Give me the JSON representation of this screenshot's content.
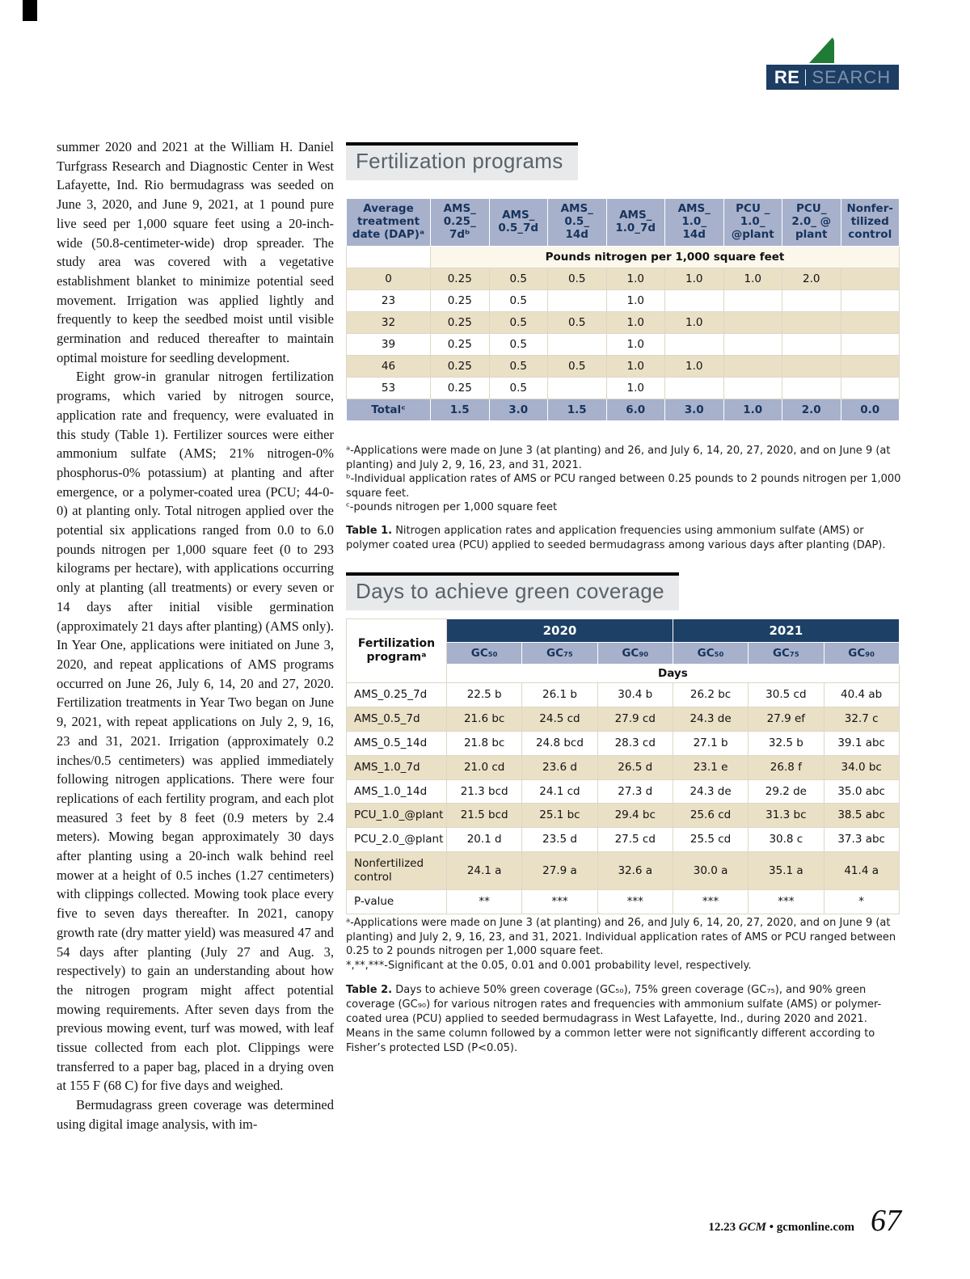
{
  "banner": {
    "re": "RE",
    "search": "SEARCH"
  },
  "page": {
    "footer": {
      "issue": "12.23 ",
      "magazine": "GCM",
      "site": " • gcmonline.com",
      "page_number": "67"
    }
  },
  "article": {
    "paragraphs": [
      "summer 2020 and 2021 at the William H. Daniel Turfgrass Research and Diagnostic Center in West Lafayette, Ind. Rio bermudagrass was seeded on June 3, 2020, and June 9, 2021, at 1 pound pure live seed per 1,000 square feet using a 20-inch-wide (50.8-centimeter-wide) drop spreader. The study area was covered with a vegetative establishment blanket to minimize potential seed movement. Irrigation was applied lightly and frequently to keep the seedbed moist until visible germination and reduced thereafter to maintain optimal moisture for seedling development.",
      "Eight grow-in granular nitrogen fertilization programs, which varied by nitrogen source, application rate and frequency, were evaluated in this study (Table 1). Fertilizer sources were either ammonium sulfate (AMS; 21% nitrogen-0% phosphorus-0% potassium) at planting and after emergence, or a polymer-coated urea (PCU; 44-0-0) at planting only. Total nitrogen applied over the potential six applications ranged from 0.0 to 6.0 pounds nitrogen per 1,000 square feet (0 to 293 kilograms per hectare), with applications occurring only at planting (all treatments) or every seven or 14 days after initial visible germination (approximately 21 days after planting) (AMS only). In Year One, applications were initiated on June 3, 2020, and repeat applications of AMS programs occurred on June 26, July 6, 14, 20 and 27, 2020. Fertilization treatments in Year Two began on June 9, 2021, with repeat applications on July 2, 9, 16, 23 and 31, 2021. Irrigation (approximately 0.2 inches/0.5 centimeters) was applied immediately following nitrogen applications. There were four replications of each fertility program, and each plot measured 3 feet by 8 feet (0.9 meters by 2.4 meters). Mowing began approximately 30 days after planting using a 20-inch walk behind reel mower at a height of 0.5 inches (1.27 centimeters) with clippings collected. Mowing took place every five to seven days thereafter. In 2021, canopy growth rate (dry matter yield) was measured 47 and 54 days after planting (July 27 and Aug. 3, respectively) to gain an understanding about how the nitrogen program might affect potential mowing requirements. After seven days from the previous mowing event, turf was mowed, with leaf tissue collected from each plot. Clippings were transferred to a paper bag, placed in a drying oven at 155 F (68 C) for five days and weighed.",
      "Bermudagrass green coverage was determined using digital image analysis, with im-"
    ]
  },
  "table1": {
    "section_title": "Fertilization programs",
    "col_headers": [
      "Average\ntreatment\ndate (DAP)ᵃ",
      "AMS_\n0.25_\n7dᵇ",
      "AMS_\n0.5_7d",
      "AMS_\n0.5_\n14d",
      "AMS_\n1.0_7d",
      "AMS_\n1.0_\n14d",
      "PCU _\n1.0_\n@plant",
      "PCU_\n2.0_ @\nplant",
      "Nonfer-\ntilized\ncontrol"
    ],
    "subheader": "Pounds nitrogen per 1,000 square feet",
    "rows": [
      [
        "0",
        "0.25",
        "0.5",
        "0.5",
        "1.0",
        "1.0",
        "1.0",
        "2.0",
        ""
      ],
      [
        "23",
        "0.25",
        "0.5",
        "",
        "1.0",
        "",
        "",
        "",
        ""
      ],
      [
        "32",
        "0.25",
        "0.5",
        "0.5",
        "1.0",
        "1.0",
        "",
        "",
        ""
      ],
      [
        "39",
        "0.25",
        "0.5",
        "",
        "1.0",
        "",
        "",
        "",
        ""
      ],
      [
        "46",
        "0.25",
        "0.5",
        "0.5",
        "1.0",
        "1.0",
        "",
        "",
        ""
      ],
      [
        "53",
        "0.25",
        "0.5",
        "",
        "1.0",
        "",
        "",
        "",
        ""
      ]
    ],
    "total_row": [
      "Totalᶜ",
      "1.5",
      "3.0",
      "1.5",
      "6.0",
      "3.0",
      "1.0",
      "2.0",
      "0.0"
    ],
    "footnotes": [
      "ᵃ-Applications were made on June 3 (at planting) and 26, and July 6, 14, 20, 27, 2020, and on June 9 (at planting) and July 2, 9, 16, 23, and 31, 2021.",
      "ᵇ-Individual application rates of AMS or PCU ranged between 0.25 pounds to 2 pounds nitrogen per 1,000 square feet.",
      "ᶜ-pounds nitrogen per 1,000 square feet"
    ],
    "caption_label": "Table 1.",
    "caption_text": " Nitrogen application rates and application frequencies using ammonium sulfate (AMS) or polymer coated urea (PCU) applied to seeded bermudagrass among various days after planting (DAP)."
  },
  "table2": {
    "section_title": "Days to achieve green coverage",
    "program_header": "Fertilization\nprogramᵃ",
    "years": [
      "2020",
      "2021"
    ],
    "gc_headers": [
      "GC₅₀",
      "GC₇₅",
      "GC₉₀",
      "GC₅₀",
      "GC₇₅",
      "GC₉₀"
    ],
    "days_label": "Days",
    "rows": [
      [
        "AMS_0.25_7d",
        "22.5 b",
        "26.1 b",
        "30.4 b",
        "26.2 bc",
        "30.5 cd",
        "40.4 ab"
      ],
      [
        "AMS_0.5_7d",
        "21.6 bc",
        "24.5 cd",
        "27.9 cd",
        "24.3 de",
        "27.9 ef",
        "32.7 c"
      ],
      [
        "AMS_0.5_14d",
        "21.8 bc",
        "24.8 bcd",
        "28.3 cd",
        "27.1 b",
        "32.5 b",
        "39.1 abc"
      ],
      [
        "AMS_1.0_7d",
        "21.0 cd",
        "23.6 d",
        "26.5 d",
        "23.1 e",
        "26.8 f",
        "34.0 bc"
      ],
      [
        "AMS_1.0_14d",
        "21.3 bcd",
        "24.1 cd",
        "27.3 d",
        "24.3 de",
        "29.2 de",
        "35.0 abc"
      ],
      [
        "PCU_1.0_@plant",
        "21.5 bcd",
        "25.1 bc",
        "29.4 bc",
        "25.6 cd",
        "31.3 bc",
        "38.5 abc"
      ],
      [
        "PCU_2.0_@plant",
        "20.1 d",
        "23.5 d",
        "27.5 cd",
        "25.5 cd",
        "30.8 c",
        "37.3 abc"
      ],
      [
        "Nonfertilized\ncontrol",
        "24.1 a",
        "27.9 a",
        "32.6 a",
        "30.0 a",
        "35.1 a",
        "41.4 a"
      ],
      [
        "P-value",
        "**",
        "***",
        "***",
        "***",
        "***",
        "*"
      ]
    ],
    "footnotes": [
      "ᵃ-Applications were made on June 3 (at planting) and 26, and July 6, 14, 20, 27, 2020, and on June 9 (at planting) and July 2, 9, 16, 23, and 31, 2021. Individual application rates of AMS or PCU ranged between 0.25 to 2 pounds nitrogen per 1,000 square feet.",
      "*,**,***-Significant at the 0.05, 0.01 and 0.001 probability level, respectively."
    ],
    "caption_label": "Table 2.",
    "caption_text": " Days to achieve 50% green coverage (GC₅₀), 75% green coverage (GC₇₅), and 90% green coverage (GC₉₀) for various nitrogen rates and frequencies with ammonium sulfate (AMS) or polymer-coated urea (PCU) applied to seeded bermudagrass in West Lafayette, Ind., during 2020 and 2021. Means in the same column followed by a common letter were not significantly different according to Fisher’s protected LSD (P<0.05)."
  }
}
